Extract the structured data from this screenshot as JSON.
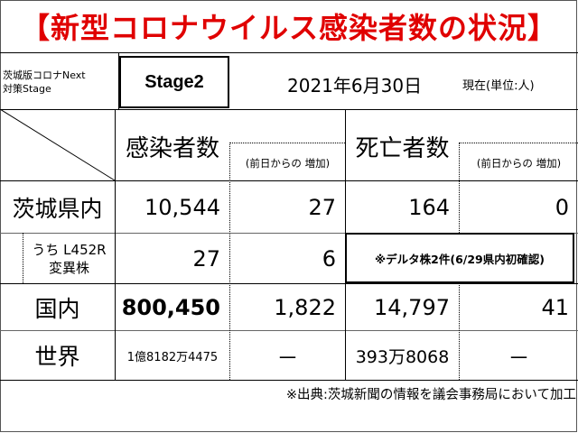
{
  "title": "【新型コロナウイルス感染者数の状況】",
  "header": {
    "stage_label_line1": "茨城版コロナNext",
    "stage_label_line2": "対策Stage",
    "stage_value": "Stage2",
    "date": "2021年6月30日",
    "date_suffix": "現在(単位:人)"
  },
  "columns": {
    "infections": "感染者数",
    "infections_change": "(前日からの 増加)",
    "deaths": "死亡者数",
    "deaths_change": "(前日からの 増加)"
  },
  "rows": {
    "ibaraki": {
      "label": "茨城県内",
      "infections": "10,544",
      "infections_change": "27",
      "deaths": "164",
      "deaths_change": "0"
    },
    "variant": {
      "label_line1": "うち L452R",
      "label_line2": "変異株",
      "infections": "27",
      "infections_change": "6",
      "note": "※デルタ株2件(6/29県内初確認)"
    },
    "national": {
      "label": "国内",
      "infections": "800,450",
      "infections_change": "1,822",
      "deaths": "14,797",
      "deaths_change": "41"
    },
    "world": {
      "label": "世界",
      "infections": "1億8182万4475",
      "infections_change": "－",
      "deaths": "393万8068",
      "deaths_change": "－"
    }
  },
  "source": "※出典:茨城新聞の情報を議会事務局において加工",
  "colors": {
    "title": "#e00000"
  }
}
